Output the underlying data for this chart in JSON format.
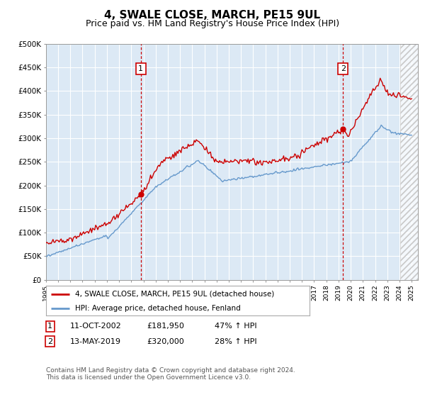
{
  "title": "4, SWALE CLOSE, MARCH, PE15 9UL",
  "subtitle": "Price paid vs. HM Land Registry's House Price Index (HPI)",
  "title_fontsize": 11,
  "subtitle_fontsize": 9,
  "bg_color": "#dce9f5",
  "fig_bg_color": "#ffffff",
  "ylim": [
    0,
    500000
  ],
  "yticks": [
    0,
    50000,
    100000,
    150000,
    200000,
    250000,
    300000,
    350000,
    400000,
    450000,
    500000
  ],
  "ytick_labels": [
    "£0",
    "£50K",
    "£100K",
    "£150K",
    "£200K",
    "£250K",
    "£300K",
    "£350K",
    "£400K",
    "£450K",
    "£500K"
  ],
  "xlim_start": 1995.0,
  "xlim_end": 2025.5,
  "line1_color": "#cc0000",
  "line2_color": "#6699cc",
  "sale1_x": 2002.78,
  "sale1_y": 181950,
  "sale2_x": 2019.37,
  "sale2_y": 320000,
  "legend_line1": "4, SWALE CLOSE, MARCH, PE15 9UL (detached house)",
  "legend_line2": "HPI: Average price, detached house, Fenland",
  "table_row1_num": "1",
  "table_row1_date": "11-OCT-2002",
  "table_row1_price": "£181,950",
  "table_row1_hpi": "47% ↑ HPI",
  "table_row2_num": "2",
  "table_row2_date": "13-MAY-2019",
  "table_row2_price": "£320,000",
  "table_row2_hpi": "28% ↑ HPI",
  "footer": "Contains HM Land Registry data © Crown copyright and database right 2024.\nThis data is licensed under the Open Government Licence v3.0."
}
